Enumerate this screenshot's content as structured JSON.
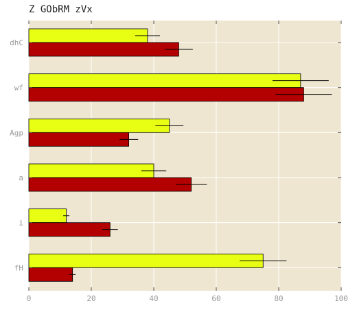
{
  "chart_data": {
    "type": "bar",
    "orientation": "horizontal",
    "title": "Z GObRM zVx",
    "categories": [
      "dhC",
      "wf",
      "Agp",
      "a",
      "i",
      "fH"
    ],
    "series": [
      {
        "color": "#e8ff14",
        "values": [
          38,
          87,
          45,
          40,
          12,
          75
        ],
        "errors": [
          4,
          9,
          4.5,
          4,
          1,
          7.5
        ]
      },
      {
        "color": "#b30000",
        "values": [
          48,
          88,
          32,
          52,
          26,
          14
        ],
        "errors": [
          4.5,
          9,
          3,
          5,
          2.5,
          1
        ]
      }
    ],
    "xlim": [
      0,
      100
    ],
    "xticks": [
      0,
      20,
      40,
      60,
      80,
      100
    ],
    "grid": true,
    "background": "#efe6d2",
    "grid_color": "#ffffff",
    "xlabel": "",
    "ylabel": ""
  }
}
